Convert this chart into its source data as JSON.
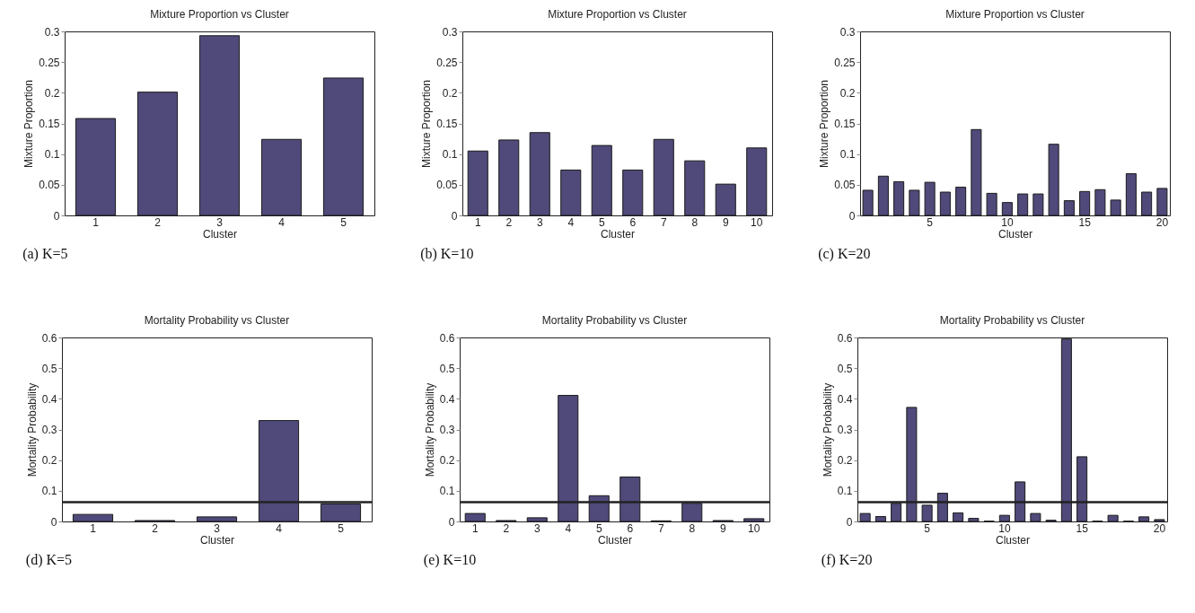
{
  "chart_data": [
    {
      "type": "bar",
      "title": "Mixture Proportion vs Cluster",
      "xlabel": "Cluster",
      "ylabel": "Mixture Proportion",
      "categories": [
        "1",
        "2",
        "3",
        "4",
        "5"
      ],
      "values": [
        0.158,
        0.201,
        0.293,
        0.124,
        0.224
      ],
      "color": "#4f4a7a",
      "ylim": [
        0,
        0.3
      ],
      "yticks": [
        0,
        0.05,
        0.1,
        0.15,
        0.2,
        0.25,
        0.3
      ],
      "annotations": [
        "(a) K=5"
      ]
    },
    {
      "type": "bar",
      "title": "Mixture Proportion vs Cluster",
      "xlabel": "Cluster",
      "ylabel": "Mixture Proportion",
      "categories": [
        "1",
        "2",
        "3",
        "4",
        "5",
        "6",
        "7",
        "8",
        "9",
        "10"
      ],
      "values": [
        0.105,
        0.123,
        0.135,
        0.074,
        0.114,
        0.074,
        0.124,
        0.089,
        0.051,
        0.11
      ],
      "color": "#4f4a7a",
      "ylim": [
        0,
        0.3
      ],
      "yticks": [
        0,
        0.05,
        0.1,
        0.15,
        0.2,
        0.25,
        0.3
      ],
      "annotations": [
        "(b) K=10"
      ]
    },
    {
      "type": "bar",
      "title": "Mixture Proportion vs Cluster",
      "xlabel": "Cluster",
      "ylabel": "Mixture Proportion",
      "categories": [
        null,
        null,
        null,
        null,
        "5",
        null,
        null,
        null,
        null,
        "10",
        null,
        null,
        null,
        null,
        "15",
        null,
        null,
        null,
        null,
        "20"
      ],
      "values": [
        0.041,
        0.064,
        0.055,
        0.041,
        0.054,
        0.038,
        0.046,
        0.14,
        0.036,
        0.021,
        0.035,
        0.035,
        0.116,
        0.024,
        0.039,
        0.042,
        0.025,
        0.068,
        0.038,
        0.044
      ],
      "color": "#4f4a7a",
      "ylim": [
        0,
        0.3
      ],
      "yticks": [
        0,
        0.05,
        0.1,
        0.15,
        0.2,
        0.25,
        0.3
      ],
      "annotations": [
        "(c) K=20"
      ]
    },
    {
      "type": "bar",
      "title": "Mortality Probability vs Cluster",
      "xlabel": "Cluster",
      "ylabel": "Mortality Probability",
      "categories": [
        "1",
        "2",
        "3",
        "4",
        "5"
      ],
      "values": [
        0.023,
        0.003,
        0.015,
        0.329,
        0.057
      ],
      "color": "#4f4a7a",
      "ylim": [
        0,
        0.6
      ],
      "yticks": [
        0,
        0.1,
        0.2,
        0.3,
        0.4,
        0.5,
        0.6
      ],
      "ref_lines": [
        {
          "axis": "y",
          "value": 0.063,
          "color": "#222222"
        }
      ],
      "annotations": [
        "(d) K=5"
      ]
    },
    {
      "type": "bar",
      "title": "Mortality Probability vs Cluster",
      "xlabel": "Cluster",
      "ylabel": "Mortality Probability",
      "categories": [
        "1",
        "2",
        "3",
        "4",
        "5",
        "6",
        "7",
        "8",
        "9",
        "10"
      ],
      "values": [
        0.026,
        0.003,
        0.012,
        0.411,
        0.084,
        0.145,
        0.002,
        0.059,
        0.003,
        0.009
      ],
      "color": "#4f4a7a",
      "ylim": [
        0,
        0.6
      ],
      "yticks": [
        0,
        0.1,
        0.2,
        0.3,
        0.4,
        0.5,
        0.6
      ],
      "ref_lines": [
        {
          "axis": "y",
          "value": 0.063,
          "color": "#222222"
        }
      ],
      "annotations": [
        "(e) K=10"
      ]
    },
    {
      "type": "bar",
      "title": "Mortality Probability vs Cluster",
      "xlabel": "Cluster",
      "ylabel": "Mortality Probability",
      "categories": [
        null,
        null,
        null,
        null,
        "5",
        null,
        null,
        null,
        null,
        "10",
        null,
        null,
        null,
        null,
        "15",
        null,
        null,
        null,
        null,
        "20"
      ],
      "values": [
        0.026,
        0.016,
        0.059,
        0.372,
        0.053,
        0.092,
        0.028,
        0.01,
        0.001,
        0.02,
        0.129,
        0.026,
        0.004,
        0.595,
        0.211,
        0.001,
        0.02,
        0.001,
        0.015,
        0.006
      ],
      "color": "#4f4a7a",
      "ylim": [
        0,
        0.6
      ],
      "yticks": [
        0,
        0.1,
        0.2,
        0.3,
        0.4,
        0.5,
        0.6
      ],
      "ref_lines": [
        {
          "axis": "y",
          "value": 0.063,
          "color": "#222222"
        }
      ],
      "annotations": [
        "(f) K=20"
      ]
    }
  ]
}
